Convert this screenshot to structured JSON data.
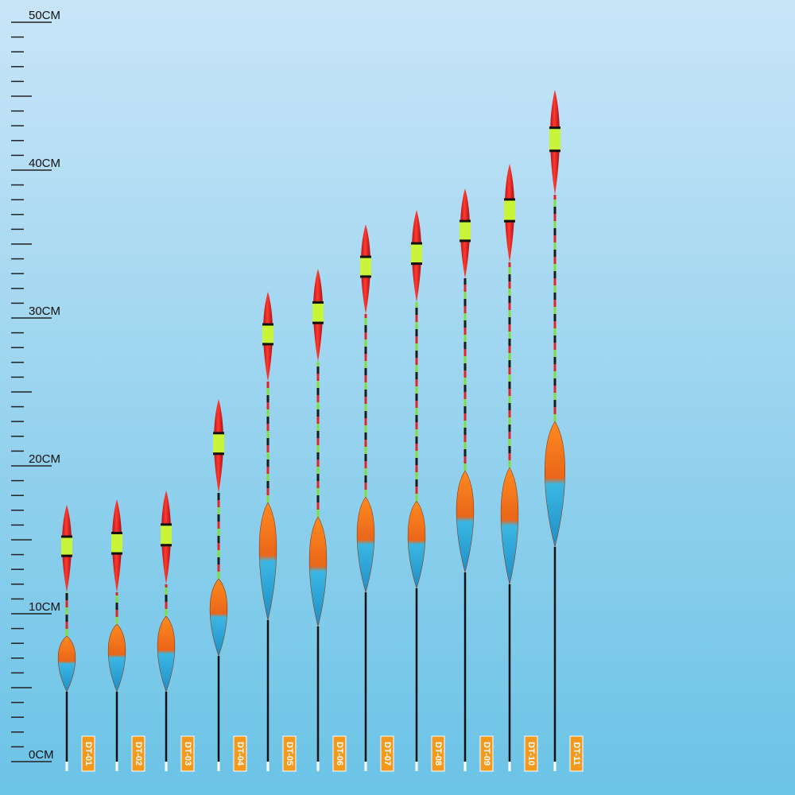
{
  "ruler": {
    "labels": [
      "0CM",
      "10CM",
      "20CM",
      "30CM",
      "40CM",
      "50CM"
    ]
  },
  "floats": [
    {
      "label": "DT-01"
    },
    {
      "label": "DT-02"
    },
    {
      "label": "DT-03"
    },
    {
      "label": "DT-04"
    },
    {
      "label": "DT-05"
    },
    {
      "label": "DT-06"
    },
    {
      "label": "DT-07"
    },
    {
      "label": "DT-08"
    },
    {
      "label": "DT-09"
    },
    {
      "label": "DT-10"
    },
    {
      "label": "DT-11"
    }
  ]
}
